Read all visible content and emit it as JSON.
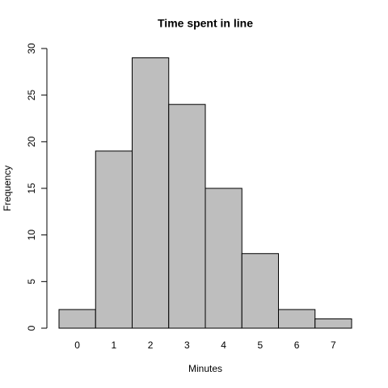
{
  "chart_data": {
    "type": "bar",
    "title": "Time spent in line",
    "x_label": "Minutes",
    "y_label": "Frequency",
    "categories": [
      "0",
      "1",
      "2",
      "3",
      "4",
      "5",
      "6",
      "7"
    ],
    "values": [
      2,
      19,
      29,
      24,
      15,
      8,
      2,
      1
    ],
    "color": "#bebebe",
    "ylim": [
      0,
      30
    ],
    "yticks": [
      0,
      5,
      10,
      15,
      20,
      25,
      30
    ],
    "grid": false
  }
}
